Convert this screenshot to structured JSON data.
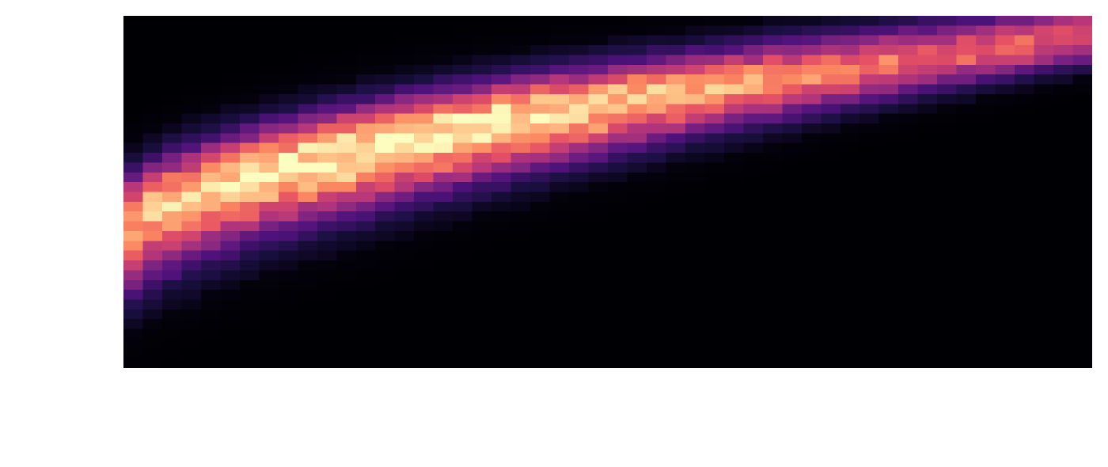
{
  "chart_data": {
    "type": "heatmap",
    "title": "",
    "xlabel": "",
    "ylabel": "",
    "colormap": "magma",
    "grid": false,
    "legend": "none",
    "shape": {
      "columns": 50,
      "rows": 36
    },
    "density_model": {
      "ridge_y_at_left": 0.38,
      "ridge_y_at_right": 0.94,
      "ridge_curvature_exponent": 0.6,
      "band_halfwidth_upper": 0.09,
      "band_halfwidth_lower_left": 0.13,
      "band_halfwidth_lower_right": 0.05,
      "peak_column_fraction": 0.3
    }
  },
  "colors": {
    "background": "#000004",
    "magma_stops": [
      "#000004",
      "#1c1044",
      "#4f127b",
      "#812581",
      "#b5367a",
      "#e55064",
      "#fb8761",
      "#fec287",
      "#fcfdbf"
    ]
  }
}
